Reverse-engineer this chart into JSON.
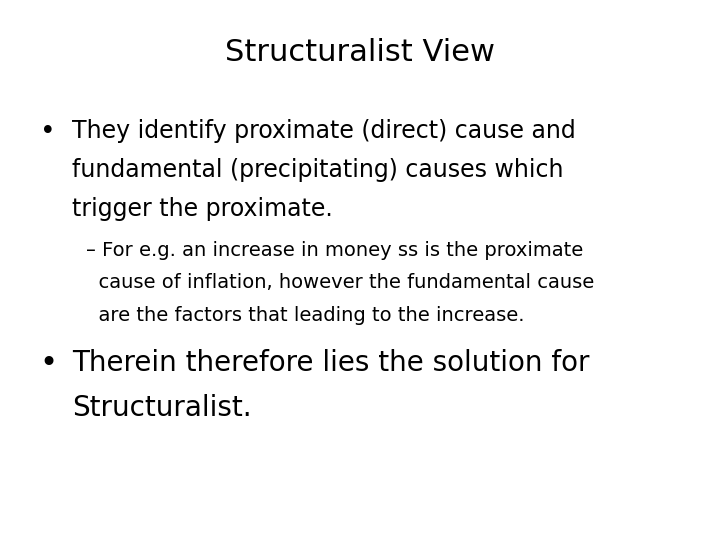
{
  "title": "Structuralist View",
  "title_fontsize": 22,
  "title_font": "DejaVu Sans",
  "background_color": "#ffffff",
  "text_color": "#000000",
  "bullet1_line1": "They identify proximate (direct) cause and",
  "bullet1_line2": "fundamental (precipitating) causes which",
  "bullet1_line3": "trigger the proximate.",
  "sub_line1": "– For e.g. an increase in money ss is the proximate",
  "sub_line2": "  cause of inflation, however the fundamental cause",
  "sub_line3": "  are the factors that leading to the increase.",
  "bullet2_line1": "Therein therefore lies the solution for",
  "bullet2_line2": "Structuralist.",
  "bullet_fontsize": 17,
  "sub_fontsize": 14,
  "bullet2_fontsize": 20
}
